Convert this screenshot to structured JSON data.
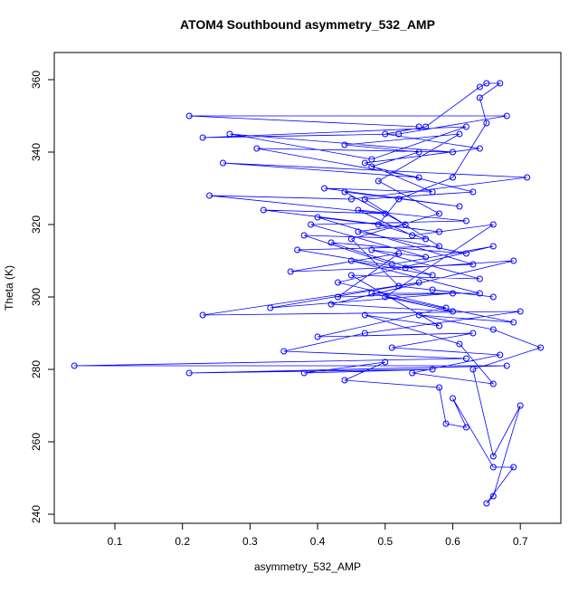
{
  "chart_data": {
    "type": "line",
    "title": "ATOM4 Southbound asymmetry_532_AMP",
    "x_label": "asymmetry_532_AMP",
    "y_label": "Theta (K)",
    "xlim": [
      0.0103,
      0.76
    ],
    "ylim": [
      237.5,
      367.5
    ],
    "xticks": [
      0.1,
      0.2,
      0.3,
      0.4,
      0.5,
      0.6,
      0.7
    ],
    "yticks": [
      240,
      260,
      280,
      300,
      320,
      340,
      360
    ],
    "x": [
      0.55,
      0.21,
      0.68,
      0.52,
      0.23,
      0.62,
      0.48,
      0.27,
      0.6,
      0.31,
      0.55,
      0.26,
      0.71,
      0.45,
      0.24,
      0.5,
      0.32,
      0.58,
      0.4,
      0.63,
      0.36,
      0.52,
      0.43,
      0.6,
      0.33,
      0.55,
      0.23,
      0.7,
      0.47,
      0.35,
      0.62,
      0.04,
      0.68,
      0.21,
      0.57,
      0.38,
      0.5,
      0.44,
      0.58,
      0.59,
      0.62,
      0.6,
      0.66,
      0.69,
      0.65,
      0.66,
      0.7,
      0.66,
      0.63,
      0.73,
      0.66,
      0.55,
      0.69,
      0.48,
      0.64,
      0.45,
      0.57,
      0.42,
      0.62,
      0.46,
      0.53,
      0.44,
      0.61,
      0.41,
      0.57,
      0.47,
      0.64,
      0.5,
      0.56,
      0.64,
      0.65,
      0.67,
      0.64,
      0.65,
      0.6,
      0.52,
      0.49,
      0.56,
      0.38,
      0.51,
      0.66,
      0.43,
      0.59,
      0.4,
      0.63,
      0.51,
      0.67,
      0.54,
      0.66,
      0.61,
      0.47,
      0.58,
      0.45,
      0.64,
      0.48,
      0.56,
      0.39,
      0.62,
      0.46,
      0.54,
      0.66,
      0.5,
      0.6,
      0.42,
      0.69,
      0.53,
      0.37,
      0.58,
      0.47,
      0.63,
      0.48,
      0.55,
      0.44,
      0.61,
      0.49,
      0.58,
      0.45,
      0.52,
      0.66,
      0.57
    ],
    "series": [
      {
        "name": "Theta",
        "color": "#0000ff",
        "values": [
          347,
          350,
          350,
          345,
          344,
          347,
          338,
          345,
          340,
          341,
          333,
          337,
          333,
          327,
          328,
          323,
          324,
          318,
          322,
          309,
          307,
          312,
          300,
          301,
          297,
          304,
          295,
          296,
          290,
          285,
          283,
          281,
          281,
          279,
          280,
          279,
          282,
          277,
          275,
          265,
          264,
          272,
          253,
          253,
          243,
          245,
          270,
          256,
          280,
          286,
          291,
          295,
          293,
          301,
          301,
          310,
          306,
          315,
          312,
          318,
          320,
          329,
          325,
          330,
          329,
          337,
          341,
          345,
          347,
          358,
          359,
          359,
          355,
          348,
          333,
          327,
          320,
          316,
          317,
          309,
          314,
          304,
          297,
          289,
          290,
          286,
          284,
          279,
          276,
          287,
          295,
          292,
          306,
          305,
          313,
          311,
          320,
          321,
          324,
          317,
          320,
          300,
          296,
          298,
          310,
          308,
          313,
          314,
          327,
          329,
          336,
          340,
          342,
          345,
          332,
          323,
          316,
          303,
          300,
          302
        ]
      }
    ]
  }
}
